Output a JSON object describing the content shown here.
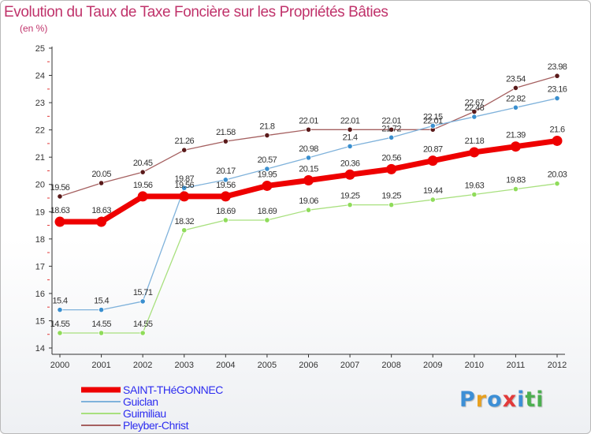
{
  "colors": {
    "title": "#c0336b",
    "axis": "#333333",
    "tick_minor": "#e23a3a",
    "legend_text": "#2d2df0",
    "brand": [
      "#3d8fd6",
      "#e8a020",
      "#3d8fd6",
      "#e23a3a",
      "#3d8fd6",
      "#4caf50",
      "#4caf50"
    ]
  },
  "brand": {
    "name": "Proxiti",
    "letters": [
      "P",
      "r",
      "o",
      "x",
      "i",
      "t",
      "i"
    ]
  },
  "chart_data": {
    "type": "line",
    "title": "Evolution du Taux de Taxe Foncière sur les Propriétés Bâties",
    "ylabel": "(en %)",
    "xlabel": "",
    "ylim": [
      14,
      25
    ],
    "y_ticks": [
      "14",
      "15",
      "16",
      "17",
      "18",
      "19",
      "20",
      "21",
      "22",
      "23",
      "24",
      "25"
    ],
    "categories": [
      "2000",
      "2001",
      "2002",
      "2003",
      "2004",
      "2005",
      "2006",
      "2007",
      "2008",
      "2009",
      "2010",
      "2011",
      "2012"
    ],
    "grid": false,
    "legend_position": "bottom-left",
    "series": [
      {
        "name": "Pleyber-Christ",
        "color": "#5a1a1a",
        "line_color": "#a56060",
        "width": 1.3,
        "values": [
          19.56,
          20.05,
          20.45,
          21.26,
          21.58,
          21.8,
          22.01,
          22.01,
          22.01,
          22.01,
          22.67,
          23.54,
          23.98
        ],
        "labels": [
          "19.56",
          "20.05",
          "20.45",
          "21.26",
          "21.58",
          "21.8",
          "22.01",
          "22.01",
          "22.01",
          "22.01",
          "22.67",
          "23.54",
          "23.98"
        ]
      },
      {
        "name": "Guiclan",
        "color": "#3a8fcf",
        "line_color": "#7fb2db",
        "width": 1.3,
        "values": [
          15.4,
          15.4,
          15.71,
          19.87,
          20.17,
          20.57,
          20.98,
          21.4,
          21.72,
          22.15,
          22.48,
          22.82,
          23.16
        ],
        "labels": [
          "15.4",
          "15.4",
          "15.71",
          "19.87",
          "20.17",
          "20.57",
          "20.98",
          "21.4",
          "21.72",
          "22.15",
          "22.48",
          "22.82",
          "23.16"
        ]
      },
      {
        "name": "Guimiliau",
        "color": "#8fdc5a",
        "line_color": "#a8e07e",
        "width": 1.3,
        "values": [
          14.55,
          14.55,
          14.55,
          18.32,
          18.69,
          18.69,
          19.06,
          19.25,
          19.25,
          19.44,
          19.63,
          19.83,
          20.03
        ],
        "labels": [
          "14.55",
          "14.55",
          "14.55",
          "18.32",
          "18.69",
          "18.69",
          "19.06",
          "19.25",
          "19.25",
          "19.44",
          "19.63",
          "19.83",
          "20.03"
        ]
      },
      {
        "name": "SAINT-THéGONNEC",
        "color": "#ee0000",
        "line_color": "#ee0000",
        "width": 7,
        "values": [
          18.63,
          18.63,
          19.56,
          19.56,
          19.56,
          19.95,
          20.15,
          20.36,
          20.56,
          20.87,
          21.18,
          21.39,
          21.6
        ],
        "labels": [
          "18.63",
          "18.63",
          "19.56",
          "19.56",
          "19.56",
          "19.95",
          "20.15",
          "20.36",
          "20.56",
          "20.87",
          "21.18",
          "21.39",
          "21.6"
        ]
      }
    ],
    "legend_order": [
      "SAINT-THéGONNEC",
      "Guiclan",
      "Guimiliau",
      "Pleyber-Christ"
    ]
  }
}
